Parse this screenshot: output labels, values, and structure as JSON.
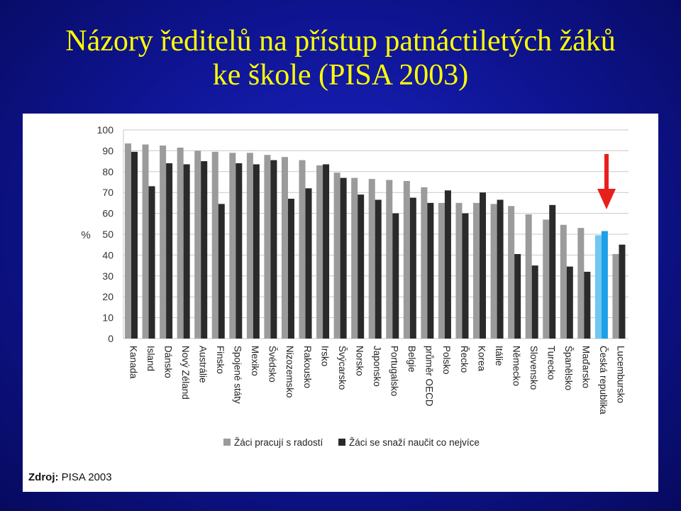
{
  "title": {
    "line1": "Názory ředitelů na přístup patnáctiletých žáků",
    "line2": "ke škole (PISA 2003)"
  },
  "source": {
    "label": "Zdroj:",
    "value": "PISA 2003"
  },
  "colors": {
    "background": "#0e1490",
    "title": "#ffff00",
    "series_joy": "#9b9b9b",
    "series_learn": "#2a2a2a",
    "highlight_joy": "#6ec8f0",
    "highlight_learn": "#1ea0e6",
    "arrow": "#e8201c"
  },
  "arrow": {
    "icon": "down-arrow-icon",
    "points_to": "Česká republika"
  },
  "chart_data": {
    "type": "bar",
    "ylabel": "%",
    "ylim": [
      0,
      100
    ],
    "yticks": [
      0,
      10,
      20,
      30,
      40,
      50,
      60,
      70,
      80,
      90,
      100
    ],
    "grid": true,
    "legend_position": "bottom",
    "highlight_category": "Česká republika",
    "categories": [
      "Kanada",
      "Island",
      "Dánsko",
      "Nový Zéland",
      "Austrálie",
      "Finsko",
      "Spojené státy",
      "Mexiko",
      "Švédsko",
      "Nizozemsko",
      "Rakousko",
      "Irsko",
      "Švýcarsko",
      "Norsko",
      "Japonsko",
      "Portugalsko",
      "Belgie",
      "průměr OECD",
      "Polsko",
      "Řecko",
      "Korea",
      "Itálie",
      "Německo",
      "Slovensko",
      "Turecko",
      "Španělsko",
      "Maďarsko",
      "Česká republika",
      "Lucembursko"
    ],
    "series": [
      {
        "name": "Žáci pracují s radostí",
        "values": [
          93.5,
          93,
          92.5,
          91.5,
          90,
          89.5,
          89,
          89,
          88,
          87,
          85.5,
          83,
          79.5,
          77,
          76.5,
          76,
          75.5,
          72.5,
          65,
          65,
          65,
          64.5,
          63.5,
          59.5,
          57,
          54.5,
          53,
          49.5,
          40.5
        ]
      },
      {
        "name": "Žáci se snaží naučit co nejvíce",
        "values": [
          89.5,
          73,
          84,
          83.5,
          85,
          64.5,
          84,
          83.5,
          85.5,
          67,
          72,
          83.5,
          77,
          69,
          66.5,
          60,
          67.5,
          65,
          71,
          60,
          70,
          66.5,
          40.5,
          35,
          64,
          34.5,
          32,
          51.5,
          45
        ]
      }
    ]
  }
}
